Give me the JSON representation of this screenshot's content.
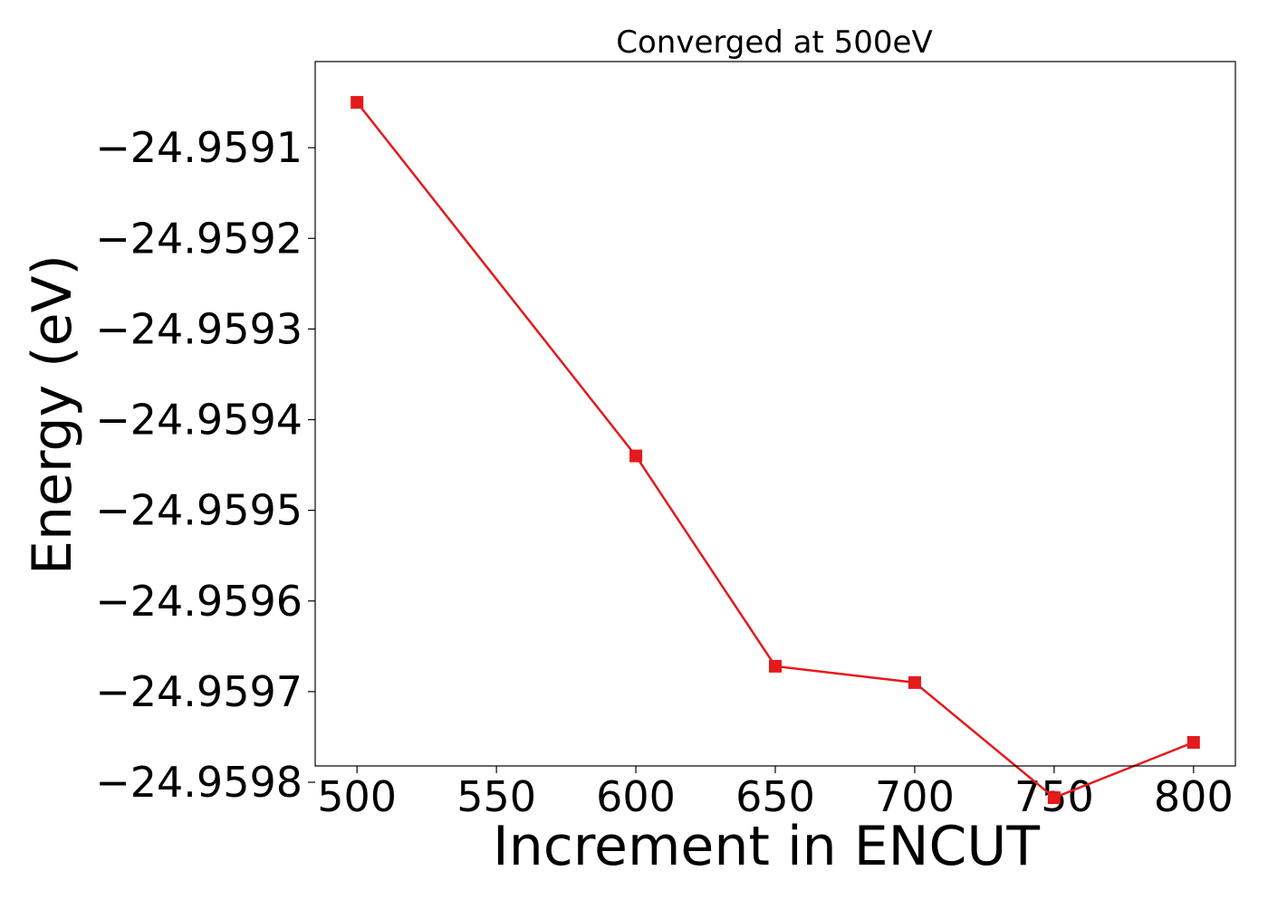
{
  "chart_data": {
    "type": "line",
    "title": "Converged at 500eV",
    "xlabel": "Increment in ENCUT",
    "ylabel": "Energy (eV)",
    "x": [
      500,
      600,
      650,
      700,
      750,
      800
    ],
    "series": [
      {
        "values": [
          -24.95905,
          -24.95944,
          -24.959672,
          -24.95969,
          -24.959817,
          -24.959756
        ],
        "color": "#e41a1c",
        "marker": "square"
      }
    ],
    "xlim": [
      485,
      815
    ],
    "ylim": [
      -24.959782,
      -24.959005
    ],
    "xticks": [
      500,
      550,
      600,
      650,
      700,
      750,
      800
    ],
    "xtick_labels": [
      "500",
      "550",
      "600",
      "650",
      "700",
      "750",
      "800"
    ],
    "yticks": [
      -24.9591,
      -24.9592,
      -24.9593,
      -24.9594,
      -24.9595,
      -24.9596,
      -24.9597,
      -24.9598
    ],
    "ytick_labels": [
      "−24.9591",
      "−24.9592",
      "−24.9593",
      "−24.9594",
      "−24.9595",
      "−24.9596",
      "−24.9597",
      "−24.9598"
    ],
    "grid": false,
    "legend": "none"
  }
}
